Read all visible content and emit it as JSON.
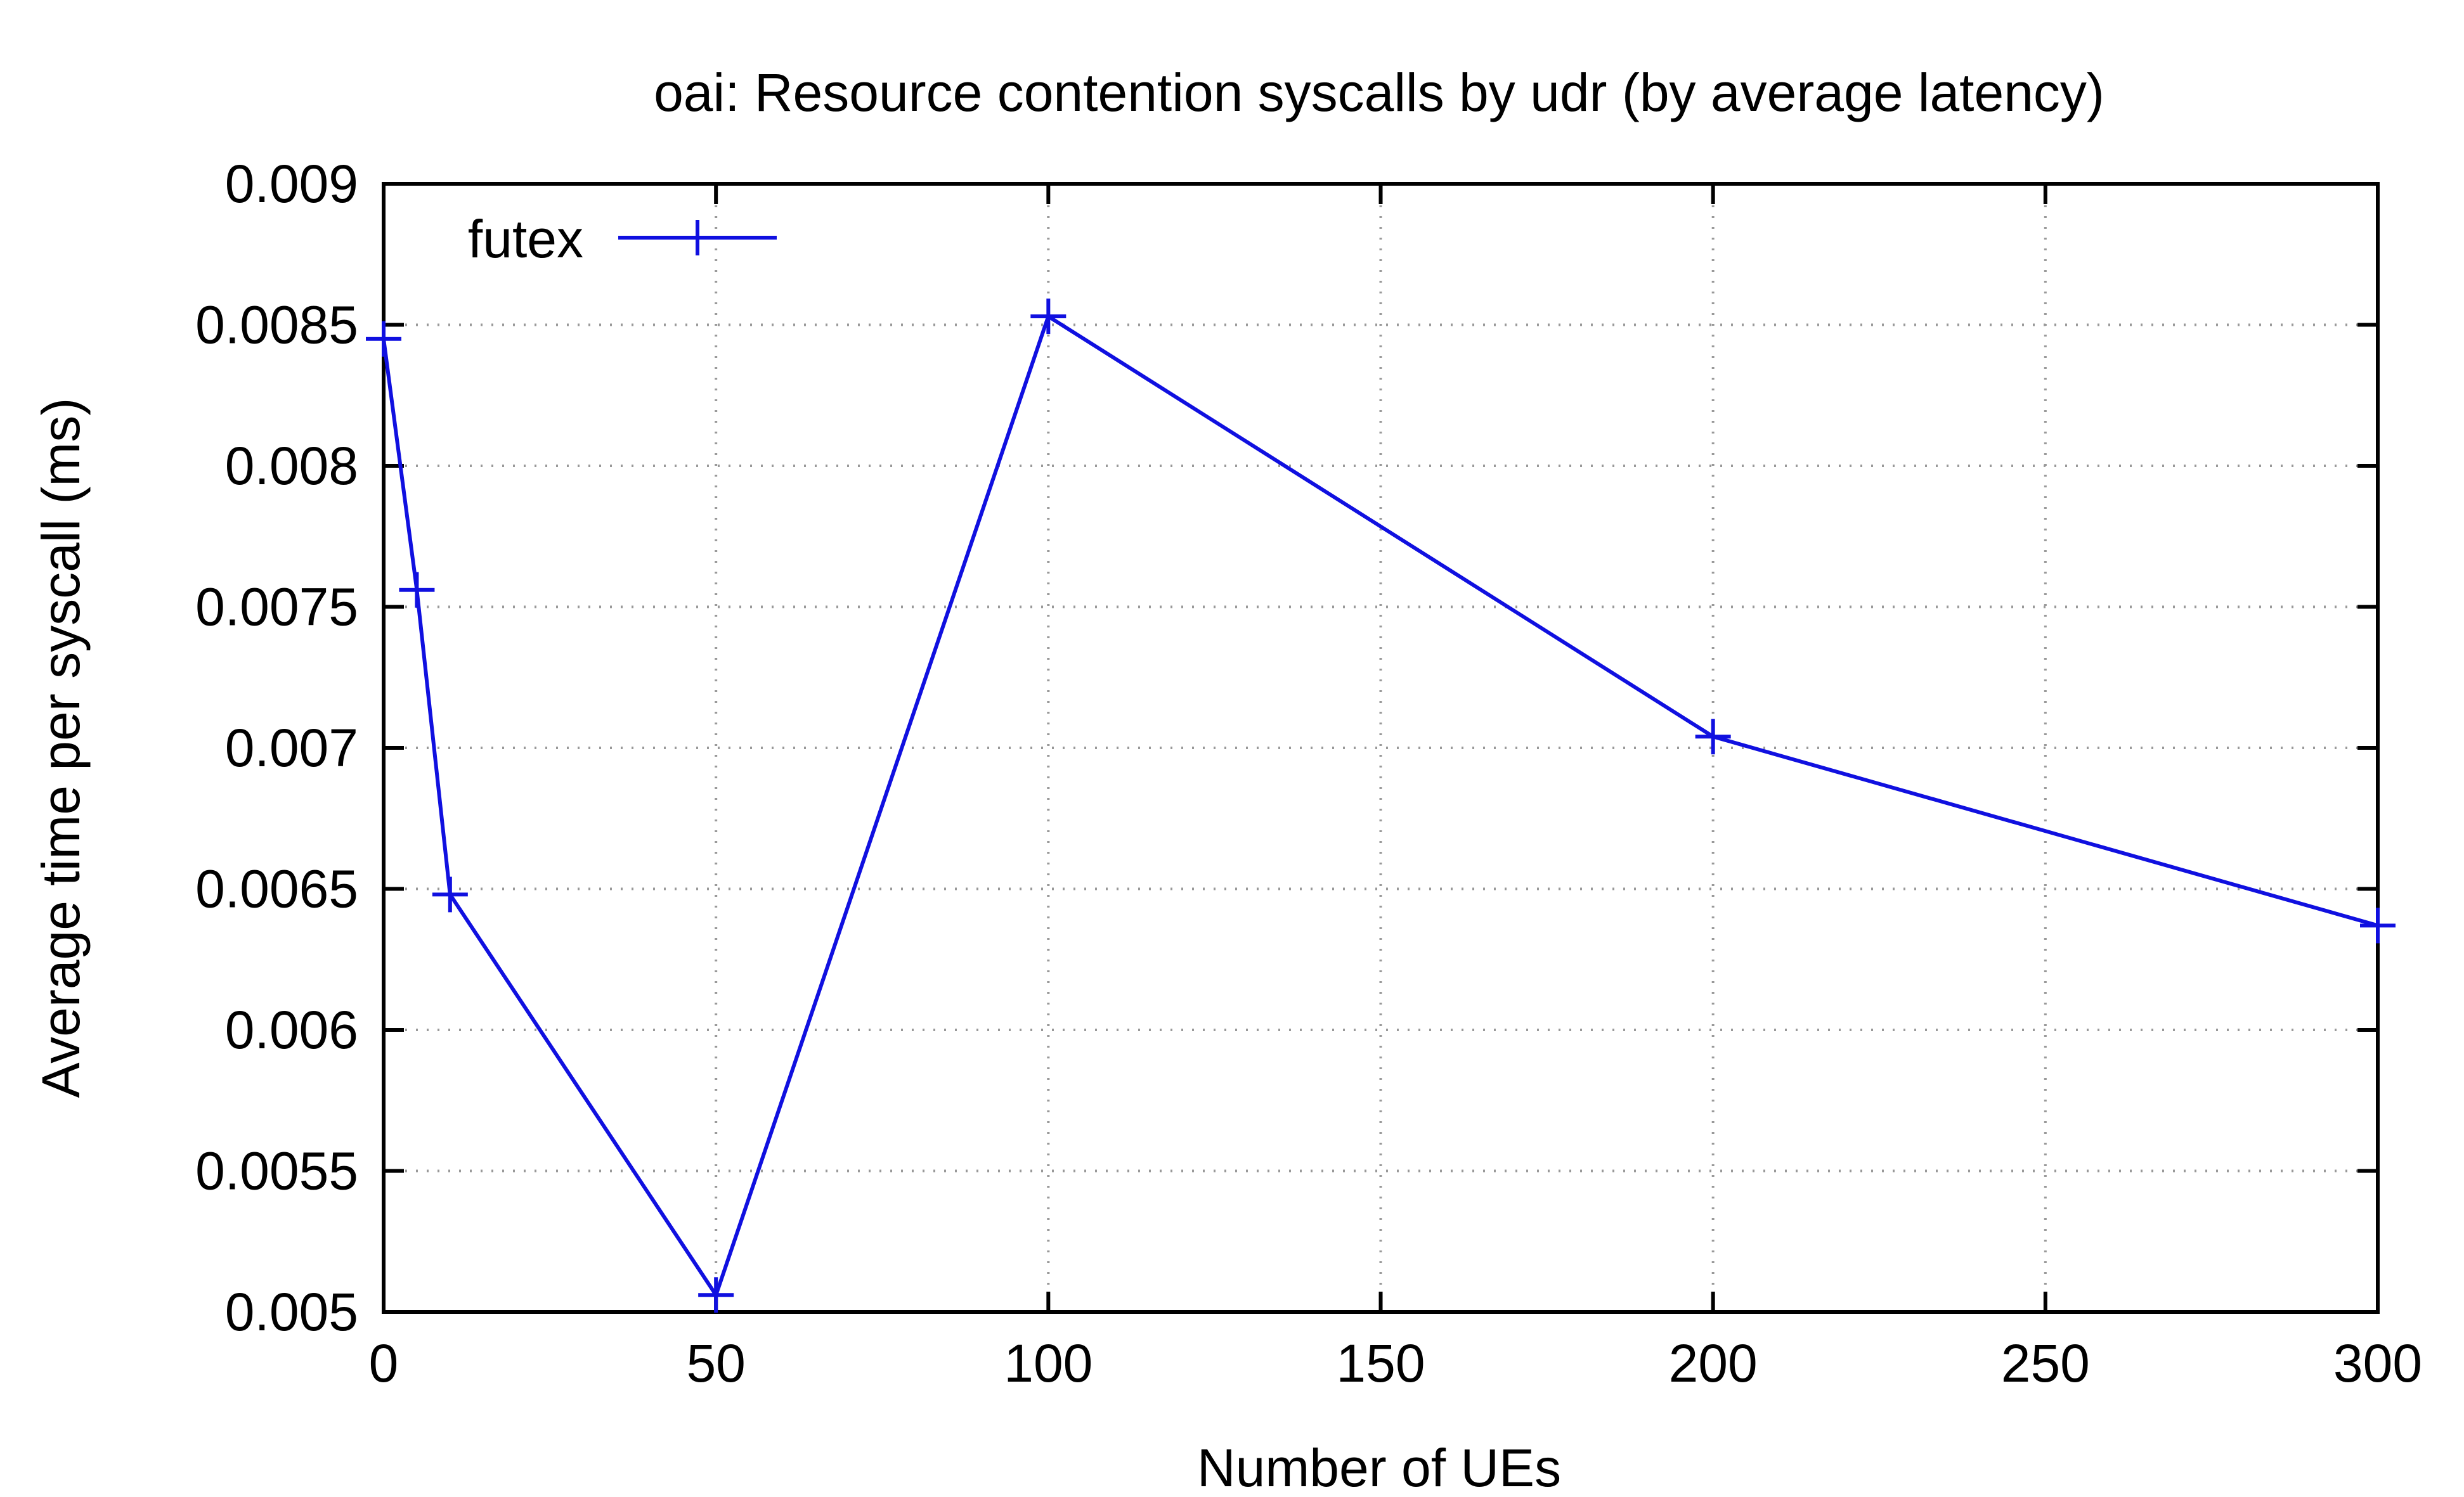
{
  "chart_data": {
    "type": "line",
    "title": "oai: Resource contention syscalls by udr (by average latency)",
    "xlabel": "Number of UEs",
    "ylabel": "Average time per syscall (ms)",
    "xlim": [
      0,
      300
    ],
    "ylim": [
      0.005,
      0.009
    ],
    "x_ticks": [
      0,
      50,
      100,
      150,
      200,
      250,
      300
    ],
    "x_tick_labels": [
      "0",
      "50",
      "100",
      "150",
      "200",
      "250",
      "300"
    ],
    "y_ticks": [
      0.005,
      0.0055,
      0.006,
      0.0065,
      0.007,
      0.0075,
      0.008,
      0.0085,
      0.009
    ],
    "y_tick_labels": [
      "0.005",
      "0.0055",
      "0.006",
      "0.0065",
      "0.007",
      "0.0075",
      "0.008",
      "0.0085",
      "0.009"
    ],
    "grid": true,
    "legend_position": "top-left",
    "series": [
      {
        "name": "futex",
        "color": "#1010e0",
        "marker": "plus",
        "x": [
          0,
          5,
          10,
          50,
          100,
          200,
          300
        ],
        "y": [
          0.00845,
          0.00756,
          0.00648,
          0.00506,
          0.00853,
          0.00704,
          0.00637
        ]
      }
    ]
  }
}
